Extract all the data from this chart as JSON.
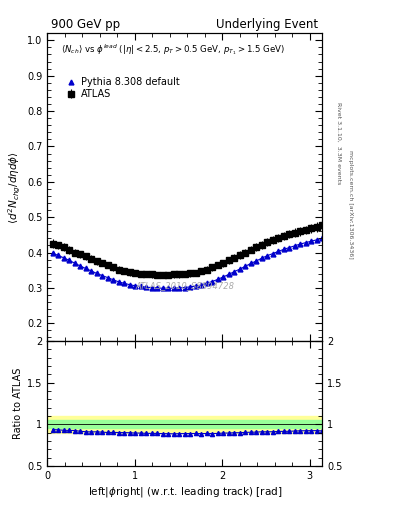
{
  "title_left": "900 GeV pp",
  "title_right": "Underlying Event",
  "ylabel_main": "$\\langle d^2 N_{chg}/d\\eta d\\phi \\rangle$",
  "ylabel_ratio": "Ratio to ATLAS",
  "xlabel": "left|$\\phi$right| (w.r.t. leading track) [rad]",
  "annotation": "$\\langle N_{ch}\\rangle$ vs $\\phi^{lead}$ ($|\\eta| < 2.5$, $p_T > 0.5$ GeV, $p_{T_1} > 1.5$ GeV)",
  "watermark": "ATLAS_2010_S8894728",
  "right_label1": "Rivet 3.1.10,  3.3M events",
  "right_label2": "mcplots.cern.ch [arXiv:1306.3436]",
  "xlim": [
    0,
    3.14159
  ],
  "ylim_main": [
    0.15,
    1.02
  ],
  "ylim_ratio": [
    0.5,
    2.0
  ],
  "atlas_x": [
    0.0628,
    0.1257,
    0.1885,
    0.2513,
    0.3142,
    0.377,
    0.4398,
    0.5027,
    0.5655,
    0.6283,
    0.6912,
    0.754,
    0.8168,
    0.8796,
    0.9425,
    1.0053,
    1.0681,
    1.131,
    1.1938,
    1.2566,
    1.3194,
    1.3823,
    1.4451,
    1.5079,
    1.5708,
    1.6336,
    1.6964,
    1.7593,
    1.8221,
    1.8849,
    1.9478,
    2.0106,
    2.0734,
    2.1363,
    2.1991,
    2.2619,
    2.3248,
    2.3876,
    2.4504,
    2.5133,
    2.5761,
    2.6389,
    2.7018,
    2.7646,
    2.8274,
    2.8903,
    2.9531,
    3.0159,
    3.0788,
    3.1416
  ],
  "atlas_y": [
    0.425,
    0.42,
    0.415,
    0.408,
    0.4,
    0.395,
    0.39,
    0.383,
    0.375,
    0.37,
    0.365,
    0.358,
    0.352,
    0.348,
    0.344,
    0.342,
    0.34,
    0.339,
    0.338,
    0.337,
    0.337,
    0.337,
    0.338,
    0.338,
    0.339,
    0.341,
    0.343,
    0.347,
    0.352,
    0.358,
    0.364,
    0.37,
    0.378,
    0.385,
    0.393,
    0.4,
    0.408,
    0.415,
    0.422,
    0.43,
    0.436,
    0.441,
    0.447,
    0.452,
    0.456,
    0.46,
    0.464,
    0.468,
    0.472,
    0.478
  ],
  "atlas_yerr": [
    0.012,
    0.011,
    0.011,
    0.011,
    0.01,
    0.01,
    0.01,
    0.01,
    0.01,
    0.009,
    0.009,
    0.009,
    0.009,
    0.009,
    0.009,
    0.009,
    0.009,
    0.009,
    0.009,
    0.009,
    0.009,
    0.009,
    0.009,
    0.009,
    0.009,
    0.009,
    0.009,
    0.009,
    0.009,
    0.009,
    0.009,
    0.01,
    0.01,
    0.01,
    0.01,
    0.01,
    0.01,
    0.011,
    0.011,
    0.011,
    0.011,
    0.011,
    0.012,
    0.012,
    0.012,
    0.012,
    0.012,
    0.012,
    0.013,
    0.013
  ],
  "pythia_x": [
    0.0628,
    0.1257,
    0.1885,
    0.2513,
    0.3142,
    0.377,
    0.4398,
    0.5027,
    0.5655,
    0.6283,
    0.6912,
    0.754,
    0.8168,
    0.8796,
    0.9425,
    1.0053,
    1.0681,
    1.131,
    1.1938,
    1.2566,
    1.3194,
    1.3823,
    1.4451,
    1.5079,
    1.5708,
    1.6336,
    1.6964,
    1.7593,
    1.8221,
    1.8849,
    1.9478,
    2.0106,
    2.0734,
    2.1363,
    2.1991,
    2.2619,
    2.3248,
    2.3876,
    2.4504,
    2.5133,
    2.5761,
    2.6389,
    2.7018,
    2.7646,
    2.8274,
    2.8903,
    2.9531,
    3.0159,
    3.0788,
    3.1416
  ],
  "pythia_y": [
    0.398,
    0.392,
    0.385,
    0.378,
    0.37,
    0.362,
    0.355,
    0.348,
    0.341,
    0.335,
    0.329,
    0.323,
    0.317,
    0.313,
    0.309,
    0.306,
    0.304,
    0.302,
    0.301,
    0.3,
    0.299,
    0.299,
    0.299,
    0.3,
    0.301,
    0.303,
    0.305,
    0.308,
    0.313,
    0.318,
    0.324,
    0.331,
    0.338,
    0.346,
    0.353,
    0.361,
    0.369,
    0.376,
    0.384,
    0.391,
    0.397,
    0.403,
    0.409,
    0.414,
    0.419,
    0.424,
    0.428,
    0.432,
    0.436,
    0.44
  ],
  "atlas_color": "black",
  "pythia_color": "#0000cc",
  "band_color_yellow": "#ffff99",
  "band_color_green": "#99ff99",
  "band_yellow": 0.1,
  "band_green": 0.05,
  "yticks_main": [
    0.2,
    0.3,
    0.4,
    0.5,
    0.6,
    0.7,
    0.8,
    0.9,
    1.0
  ],
  "yticks_ratio": [
    0.5,
    1.0,
    1.5,
    2.0
  ],
  "xticks": [
    0,
    1,
    2,
    3
  ]
}
